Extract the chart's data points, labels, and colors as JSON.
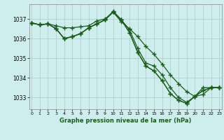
{
  "title": "Graphe pression niveau de la mer (hPa)",
  "background_color": "#ceeeed",
  "grid_color": "#b0c8c8",
  "line_color": "#1a5c1a",
  "xlim": [
    -0.3,
    23.3
  ],
  "ylim": [
    1032.4,
    1037.75
  ],
  "yticks": [
    1033,
    1034,
    1035,
    1036,
    1037
  ],
  "xticks": [
    0,
    1,
    2,
    3,
    4,
    5,
    6,
    7,
    8,
    9,
    10,
    11,
    12,
    13,
    14,
    15,
    16,
    17,
    18,
    19,
    20,
    21,
    22,
    23
  ],
  "series": [
    [
      1036.8,
      1036.7,
      1036.75,
      1036.65,
      1036.55,
      1036.55,
      1036.6,
      1036.65,
      1036.9,
      1037.0,
      1037.35,
      1036.85,
      1036.5,
      1036.1,
      1035.6,
      1035.2,
      1034.7,
      1034.15,
      1033.7,
      1033.3,
      1033.05,
      1033.15,
      1033.5,
      1033.5
    ],
    [
      1036.8,
      1036.7,
      1036.75,
      1036.5,
      1036.0,
      1036.1,
      1036.25,
      1036.55,
      1036.75,
      1036.95,
      1037.4,
      1036.95,
      1036.45,
      1035.5,
      1034.75,
      1034.6,
      1034.15,
      1033.5,
      1033.0,
      1032.75,
      1033.05,
      1033.5,
      1033.5,
      1033.5
    ],
    [
      1036.8,
      1036.7,
      1036.75,
      1036.5,
      1036.0,
      1036.1,
      1036.25,
      1036.55,
      1036.75,
      1036.95,
      1037.35,
      1036.95,
      1036.3,
      1035.3,
      1034.6,
      1034.35,
      1033.85,
      1033.2,
      1032.85,
      1032.7,
      1033.05,
      1033.35,
      1033.5,
      1033.5
    ],
    [
      1036.8,
      1036.7,
      1036.75,
      1036.5,
      1036.0,
      1036.1,
      1036.25,
      1036.55,
      1036.75,
      1036.95,
      1037.35,
      1036.95,
      1036.3,
      1035.3,
      1034.6,
      1034.35,
      1033.85,
      1033.2,
      1032.85,
      1032.7,
      1033.05,
      1033.35,
      1033.5,
      1033.5
    ]
  ]
}
